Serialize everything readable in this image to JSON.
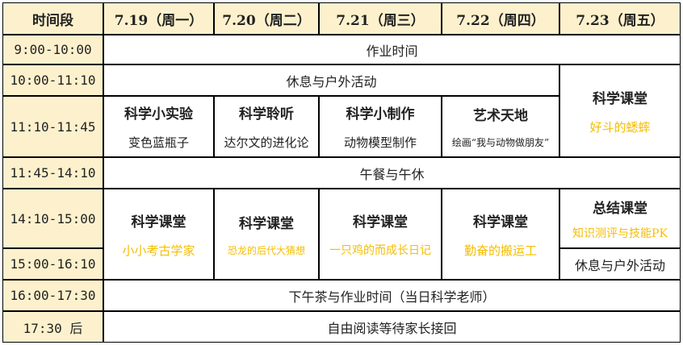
{
  "header": [
    "时间段",
    "7.19（周一）",
    "7.20（周二）",
    "7.21（周三）",
    "7.22（周四）",
    "7.23（周五）"
  ],
  "times": [
    "9:00-10:00",
    "10:00-11:10",
    "11:10-11:45",
    "11:45-14:10",
    "14:10-15:00",
    "15:00-16:10",
    "16:00-17:30",
    "17:30 后"
  ],
  "homework": "作业时间",
  "rest": "休息与户外活动",
  "morning": [
    {
      "title": "科学小实验",
      "sub": "变色蓝瓶子"
    },
    {
      "title": "科学聆听",
      "sub": "达尔文的进化论"
    },
    {
      "title": "科学小制作",
      "sub": "动物模型制作"
    },
    {
      "title": "艺术天地",
      "sub": "绘画“我与动物做朋友”"
    }
  ],
  "fri_morning": {
    "title": "科学课堂",
    "sub": "好斗的蟋蟀"
  },
  "lunch": "午餐与午休",
  "afternoon": [
    {
      "title": "科学课堂",
      "sub": "小小考古学家"
    },
    {
      "title": "科学课堂",
      "sub": "恐龙的后代大猜想"
    },
    {
      "title": "科学课堂",
      "sub": "一只鸡的而成长日记"
    },
    {
      "title": "科学课堂",
      "sub": "勤奋的搬运工"
    }
  ],
  "fri_afternoon": {
    "title": "总结课堂",
    "sub": "知识测评与技能PK"
  },
  "fri_rest": "休息与户外活动",
  "tea": "下午茶与作业时间（当日科学老师）",
  "reading": "自由阅读等待家长接回",
  "colors": {
    "header_bg": "#fdf1cd",
    "highlight": "#f5bd00"
  }
}
